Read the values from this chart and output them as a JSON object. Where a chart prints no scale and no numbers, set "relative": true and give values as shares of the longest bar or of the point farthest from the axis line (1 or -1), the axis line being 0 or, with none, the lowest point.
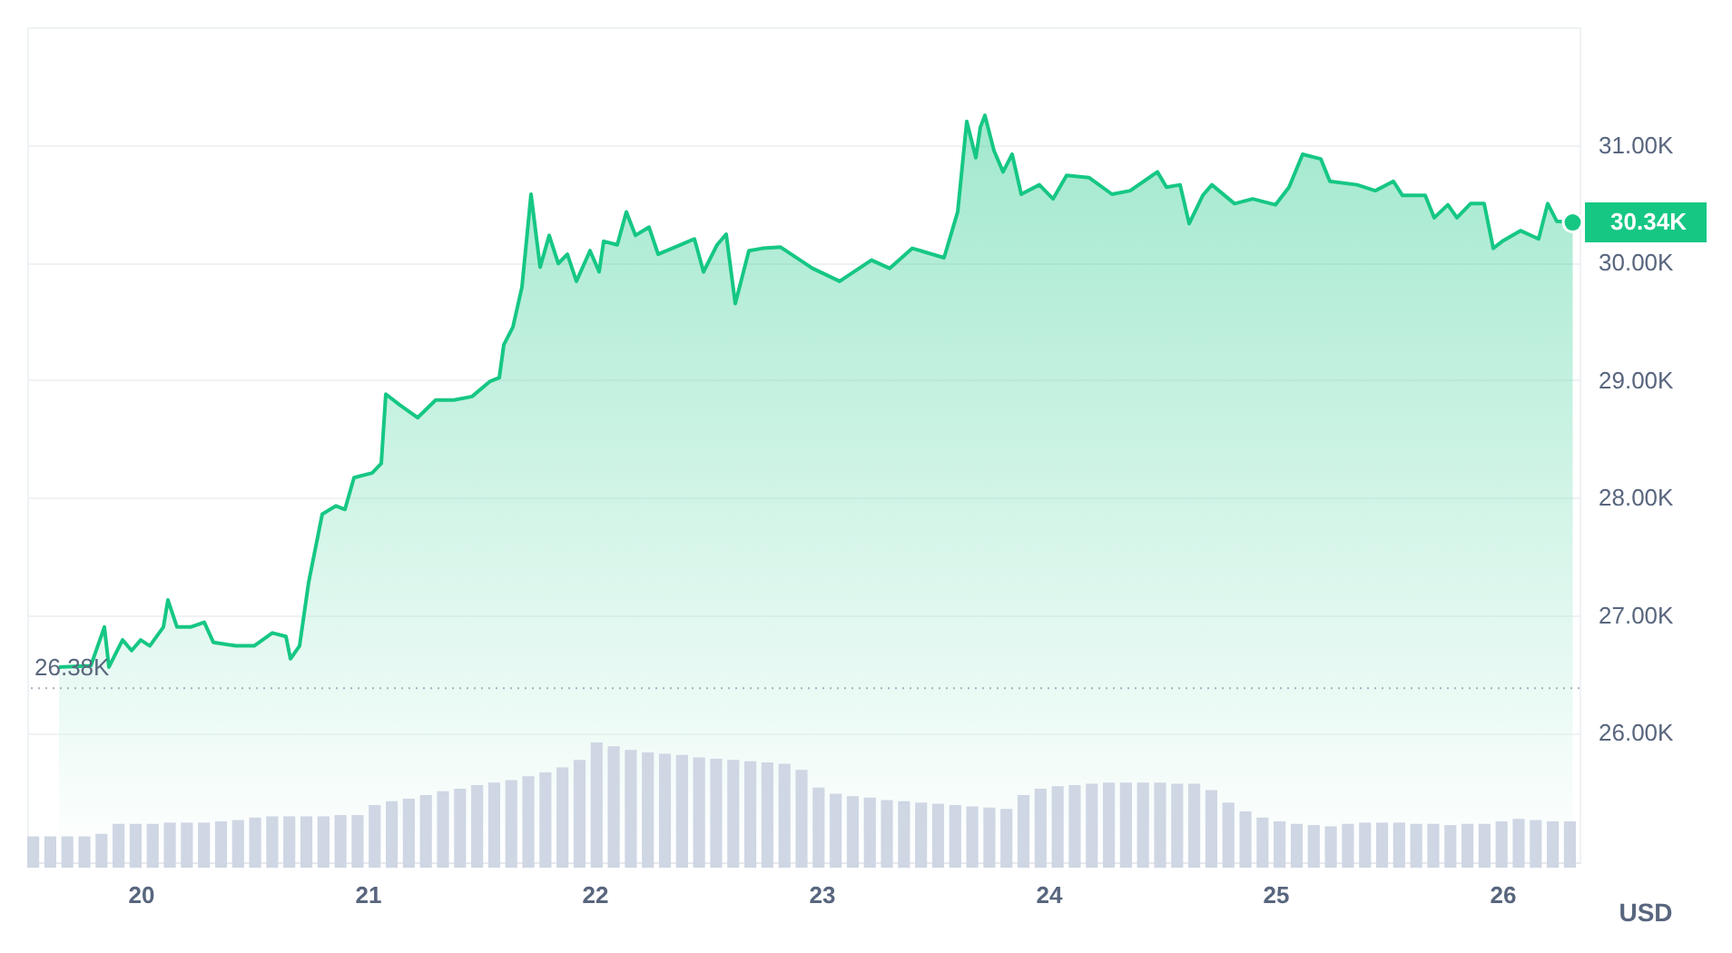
{
  "chart_data": [
    {
      "type": "area",
      "color": "#16c784",
      "ylabel": "USD",
      "grid": "y",
      "x": [
        19.64,
        19.78,
        19.84,
        19.86,
        19.92,
        19.96,
        20.0,
        20.04,
        20.1,
        20.12,
        20.16,
        20.22,
        20.28,
        20.32,
        20.42,
        20.5,
        20.58,
        20.64,
        20.66,
        20.7,
        20.74,
        20.8,
        20.86,
        20.9,
        20.94,
        21.02,
        21.06,
        21.08,
        21.14,
        21.22,
        21.3,
        21.38,
        21.46,
        21.54,
        21.58,
        21.6,
        21.64,
        21.68,
        21.72,
        21.76,
        21.8,
        21.84,
        21.88,
        21.92,
        21.98,
        22.02,
        22.04,
        22.1,
        22.14,
        22.18,
        22.24,
        22.28,
        22.38,
        22.44,
        22.48,
        22.54,
        22.58,
        22.62,
        22.68,
        22.74,
        22.82,
        22.96,
        23.08,
        23.22,
        23.3,
        23.4,
        23.54,
        23.6,
        23.64,
        23.68,
        23.7,
        23.72,
        23.76,
        23.8,
        23.84,
        23.88,
        23.96,
        24.02,
        24.08,
        24.18,
        24.28,
        24.36,
        24.48,
        24.52,
        24.58,
        24.62,
        24.68,
        24.72,
        24.82,
        24.9,
        25.0,
        25.06,
        25.12,
        25.2,
        25.24,
        25.36,
        25.44,
        25.52,
        25.56,
        25.66,
        25.7,
        25.76,
        25.8,
        25.86,
        25.92,
        25.96,
        26.0,
        26.08,
        26.16,
        26.2,
        26.24,
        26.31
      ],
      "values": [
        26.56,
        26.57,
        26.9,
        26.56,
        26.79,
        26.7,
        26.79,
        26.74,
        26.9,
        27.13,
        26.9,
        26.9,
        26.94,
        26.77,
        26.74,
        26.74,
        26.85,
        26.82,
        26.63,
        26.74,
        27.28,
        27.86,
        27.93,
        27.9,
        28.17,
        28.21,
        28.29,
        28.88,
        28.79,
        28.68,
        28.83,
        28.83,
        28.86,
        28.99,
        29.02,
        29.3,
        29.45,
        29.79,
        30.58,
        29.96,
        30.23,
        29.99,
        30.07,
        29.84,
        30.1,
        29.92,
        30.18,
        30.15,
        30.43,
        30.23,
        30.3,
        30.07,
        30.15,
        30.2,
        29.92,
        30.15,
        30.24,
        29.65,
        30.1,
        30.12,
        30.13,
        29.95,
        29.84,
        30.02,
        29.95,
        30.12,
        30.04,
        30.43,
        31.2,
        30.89,
        31.15,
        31.25,
        30.95,
        30.77,
        30.92,
        30.58,
        30.66,
        30.54,
        30.74,
        30.72,
        30.58,
        30.61,
        30.77,
        30.64,
        30.66,
        30.33,
        30.57,
        30.66,
        30.5,
        30.54,
        30.49,
        30.64,
        30.92,
        30.88,
        30.69,
        30.66,
        30.61,
        30.69,
        30.57,
        30.57,
        30.38,
        30.49,
        30.38,
        30.5,
        30.5,
        30.12,
        30.18,
        30.27,
        30.2,
        30.5,
        30.35,
        30.34
      ],
      "xlim": [
        19.5,
        26.34
      ],
      "xticks": [
        20,
        21,
        22,
        23,
        24,
        25,
        26
      ],
      "ylim": [
        24.9,
        32.0
      ],
      "yticks": [
        {
          "value": 26,
          "label": "26.00K"
        },
        {
          "value": 27,
          "label": "27.00K"
        },
        {
          "value": 28,
          "label": "28.00K"
        },
        {
          "value": 29,
          "label": "29.00K"
        },
        {
          "value": 30,
          "label": "30.00K"
        },
        {
          "value": 31,
          "label": "31.00K"
        }
      ],
      "ref_lines": [
        {
          "axis": "y",
          "value": 26.38,
          "label": "26.38K",
          "line_style": "dotted",
          "color": "#a6b0c3"
        }
      ],
      "annotations": [
        {
          "text": "30.34K",
          "x": 26.31,
          "y": 30.34
        }
      ]
    },
    {
      "type": "bar",
      "color": "#cfd6e4",
      "relative": true,
      "categories": [
        null,
        null,
        null,
        null,
        null,
        null,
        null,
        null,
        null,
        null,
        null,
        null,
        null,
        null,
        null,
        null,
        null,
        null,
        null,
        null,
        null,
        null,
        null,
        null,
        null,
        null,
        null,
        null,
        null,
        null,
        null,
        null,
        null,
        null,
        null,
        null,
        null,
        null,
        null,
        null,
        null,
        null,
        null,
        null,
        null,
        null,
        null,
        null,
        null,
        null,
        null,
        null,
        null,
        null,
        null,
        null,
        null,
        null,
        null,
        null,
        null,
        null,
        null,
        null,
        null,
        null,
        null,
        null,
        null,
        null,
        null,
        null,
        null,
        null,
        null,
        null,
        null,
        null,
        null,
        null,
        null,
        null,
        null,
        null,
        null,
        null,
        null,
        null,
        null,
        null,
        null
      ],
      "values": [
        0.25,
        0.25,
        0.25,
        0.25,
        0.27,
        0.35,
        0.35,
        0.35,
        0.36,
        0.36,
        0.36,
        0.37,
        0.38,
        0.4,
        0.41,
        0.41,
        0.41,
        0.41,
        0.42,
        0.42,
        0.5,
        0.53,
        0.55,
        0.58,
        0.61,
        0.63,
        0.66,
        0.68,
        0.7,
        0.73,
        0.76,
        0.8,
        0.86,
        1.0,
        0.97,
        0.94,
        0.92,
        0.91,
        0.9,
        0.88,
        0.87,
        0.86,
        0.85,
        0.84,
        0.83,
        0.78,
        0.64,
        0.59,
        0.57,
        0.56,
        0.54,
        0.53,
        0.52,
        0.51,
        0.5,
        0.49,
        0.48,
        0.47,
        0.58,
        0.63,
        0.65,
        0.66,
        0.67,
        0.68,
        0.68,
        0.68,
        0.68,
        0.67,
        0.67,
        0.62,
        0.52,
        0.45,
        0.4,
        0.37,
        0.35,
        0.34,
        0.33,
        0.35,
        0.36,
        0.36,
        0.36,
        0.35,
        0.35,
        0.34,
        0.35,
        0.35,
        0.37,
        0.39,
        0.38,
        0.37,
        0.37
      ]
    }
  ]
}
